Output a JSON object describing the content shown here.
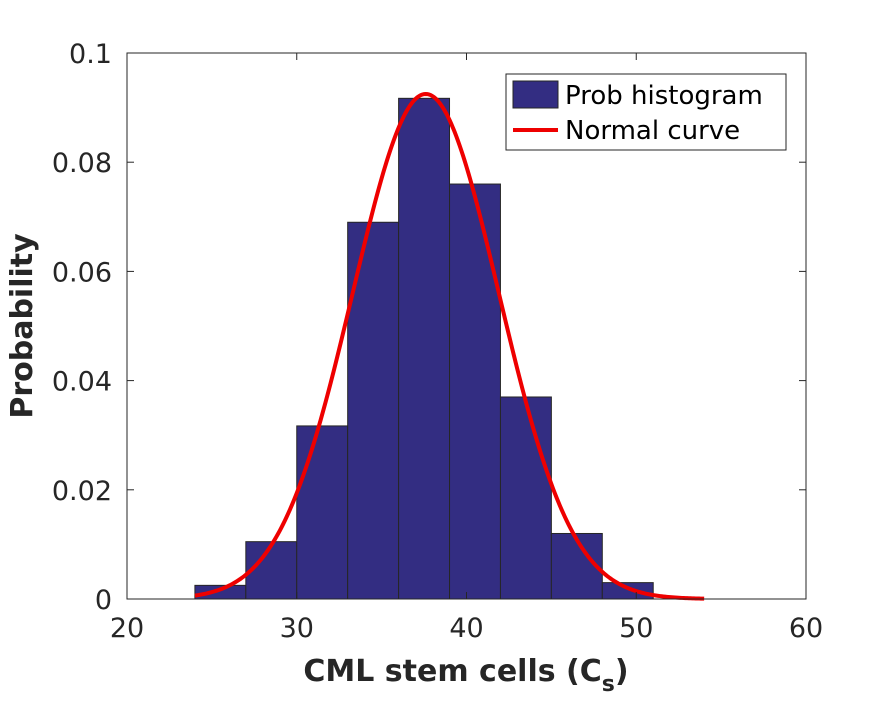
{
  "chart_data": {
    "type": "bar",
    "xlabel_main": "CML stem cells (C",
    "xlabel_sub": "s",
    "xlabel_close": ")",
    "ylabel": "Probability",
    "xlim": [
      20,
      60
    ],
    "ylim": [
      0,
      0.1
    ],
    "x_ticks": [
      "20",
      "30",
      "40",
      "50",
      "60"
    ],
    "y_ticks": [
      "0",
      "0.02",
      "0.04",
      "0.06",
      "0.08",
      "0.1"
    ],
    "grid": false,
    "legend_placement": "top-right",
    "histogram": {
      "name": "Prob histogram",
      "color": "#332d82",
      "bin_edges": [
        24,
        27,
        30,
        33,
        36,
        39,
        42,
        45,
        48,
        51
      ],
      "values": [
        0.0025,
        0.0105,
        0.0317,
        0.069,
        0.0917,
        0.076,
        0.037,
        0.012,
        0.003
      ]
    },
    "normal_curve": {
      "name": "Normal curve",
      "color": "#ee0000",
      "mean": 37.6,
      "sd": 4.3,
      "peak": 0.0925,
      "x_range": [
        24,
        54
      ]
    }
  },
  "legend": {
    "histogram_label": "Prob histogram",
    "curve_label": "Normal curve"
  }
}
